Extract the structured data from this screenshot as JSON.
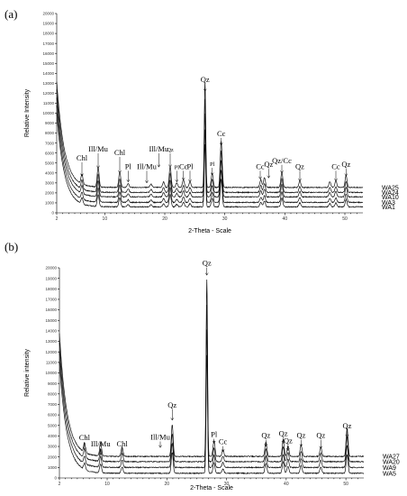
{
  "chart_data": [
    {
      "panel": "(a)",
      "type": "line",
      "xlabel": "2-Theta - Scale",
      "ylabel": "Relative Intensity",
      "xlim": [
        2,
        53
      ],
      "ylim": [
        0,
        20000
      ],
      "x_ticks": [
        2,
        10,
        20,
        30,
        40,
        50
      ],
      "y_ticks": [
        0,
        1000,
        2000,
        3000,
        4000,
        5000,
        6000,
        7000,
        8000,
        9000,
        10000,
        11000,
        12000,
        13000,
        14000,
        15000,
        16000,
        17000,
        18000,
        19000,
        20000
      ],
      "series": [
        {
          "name": "WA25",
          "baseline": 2550
        },
        {
          "name": "WA24",
          "baseline": 2050
        },
        {
          "name": "WA10",
          "baseline": 1600
        },
        {
          "name": "WA3",
          "baseline": 1050
        },
        {
          "name": "WA1",
          "baseline": 600
        }
      ],
      "start_intensity": [
        13200,
        12400,
        11600,
        10800,
        10000
      ],
      "peaks": [
        {
          "x": 6.2,
          "h": 900
        },
        {
          "x": 8.9,
          "h": 1800
        },
        {
          "x": 12.5,
          "h": 1400
        },
        {
          "x": 13.9,
          "h": 350
        },
        {
          "x": 17.7,
          "h": 300
        },
        {
          "x": 19.8,
          "h": 500
        },
        {
          "x": 20.9,
          "h": 1900
        },
        {
          "x": 22.0,
          "h": 400
        },
        {
          "x": 23.1,
          "h": 700
        },
        {
          "x": 24.2,
          "h": 500
        },
        {
          "x": 26.7,
          "h": 9500
        },
        {
          "x": 27.9,
          "h": 1300
        },
        {
          "x": 29.4,
          "h": 4200
        },
        {
          "x": 36.0,
          "h": 700
        },
        {
          "x": 36.6,
          "h": 900
        },
        {
          "x": 39.5,
          "h": 1400
        },
        {
          "x": 42.5,
          "h": 600
        },
        {
          "x": 47.5,
          "h": 500
        },
        {
          "x": 48.5,
          "h": 600
        },
        {
          "x": 50.2,
          "h": 1100
        }
      ],
      "annotations": [
        {
          "text": "Chl",
          "x": 6.2,
          "size": "l",
          "label_y": 5250,
          "arrow_to": 3700
        },
        {
          "text": "Ill/Mu",
          "x": 8.9,
          "size": "l",
          "label_y": 6150,
          "arrow_to": 4500
        },
        {
          "text": "Chl",
          "x": 12.5,
          "size": "l",
          "label_y": 5800,
          "arrow_to": 4000
        },
        {
          "text": "Pl",
          "x": 13.9,
          "size": "l",
          "label_y": 4400,
          "arrow_to": 3100
        },
        {
          "text": "Ill/Mu",
          "x": 17.0,
          "size": "l",
          "label_y": 4400,
          "arrow_to": 3000
        },
        {
          "text": "Ill/Mu",
          "x": 19.0,
          "size": "l",
          "label_y": 6150,
          "arrow_to": 4600
        },
        {
          "text": "Qz",
          "x": 20.9,
          "size": "s",
          "label_y": 6150,
          "arrow_to": 4600
        },
        {
          "text": "Pl",
          "x": 22.0,
          "size": "s",
          "label_y": 4400,
          "arrow_to": 3100
        },
        {
          "text": "Cc",
          "x": 23.1,
          "size": "l",
          "label_y": 4400,
          "arrow_to": 3300
        },
        {
          "text": "Pl",
          "x": 24.2,
          "size": "l",
          "label_y": 4400,
          "arrow_to": 3100
        },
        {
          "text": "Qz",
          "x": 26.7,
          "size": "l",
          "label_y": 13100,
          "arrow_to": 12200
        },
        {
          "text": "Pl",
          "x": 27.9,
          "size": "s",
          "label_y": 4700,
          "arrow_to": 3800
        },
        {
          "text": "Cc",
          "x": 29.4,
          "size": "l",
          "label_y": 7700,
          "arrow_to": 6800
        },
        {
          "text": "Cc",
          "x": 35.9,
          "size": "l",
          "label_y": 4400,
          "arrow_to": 3400
        },
        {
          "text": "Qz",
          "x": 37.3,
          "size": "l",
          "label_y": 4600,
          "arrow_to": 3500
        },
        {
          "text": "Qz/Cc",
          "x": 39.5,
          "size": "l",
          "label_y": 5000,
          "arrow_to": 4000
        },
        {
          "text": "Qz",
          "x": 42.5,
          "size": "l",
          "label_y": 4400,
          "arrow_to": 3200
        },
        {
          "text": "Cc",
          "x": 48.5,
          "size": "l",
          "label_y": 4400,
          "arrow_to": 3200
        },
        {
          "text": "Qz",
          "x": 50.2,
          "size": "l",
          "label_y": 4600,
          "arrow_to": 3700
        }
      ]
    },
    {
      "panel": "(b)",
      "type": "line",
      "xlabel": "2-Theta - Scale",
      "ylabel": "Relative intensity",
      "xlim": [
        2,
        53
      ],
      "ylim": [
        0,
        20000
      ],
      "x_ticks": [
        2,
        10,
        20,
        30,
        40,
        50
      ],
      "y_ticks": [
        0,
        1000,
        2000,
        3000,
        4000,
        5000,
        6000,
        7000,
        8000,
        9000,
        10000,
        11000,
        12000,
        13000,
        14000,
        15000,
        16000,
        17000,
        18000,
        19000,
        20000
      ],
      "series": [
        {
          "name": "WA27",
          "baseline": 2050
        },
        {
          "name": "WA20",
          "baseline": 1550
        },
        {
          "name": "WA9",
          "baseline": 1000
        },
        {
          "name": "WA5",
          "baseline": 450
        }
      ],
      "start_intensity": [
        13800,
        12900,
        12000,
        11000
      ],
      "peaks": [
        {
          "x": 6.2,
          "h": 900
        },
        {
          "x": 8.9,
          "h": 1300
        },
        {
          "x": 12.5,
          "h": 900
        },
        {
          "x": 20.9,
          "h": 3000
        },
        {
          "x": 26.7,
          "h": 17000
        },
        {
          "x": 27.9,
          "h": 1500
        },
        {
          "x": 29.4,
          "h": 600
        },
        {
          "x": 36.6,
          "h": 1400
        },
        {
          "x": 39.5,
          "h": 1600
        },
        {
          "x": 40.3,
          "h": 1000
        },
        {
          "x": 42.5,
          "h": 1100
        },
        {
          "x": 45.8,
          "h": 900
        },
        {
          "x": 50.2,
          "h": 2700
        }
      ],
      "annotations": [
        {
          "text": "Chl",
          "x": 6.2,
          "size": "l",
          "label_y": 3600,
          "arrow_to": 2700
        },
        {
          "text": "Ill/Mu",
          "x": 8.9,
          "size": "l",
          "label_y": 3000,
          "arrow_to": 2200
        },
        {
          "text": "Chl",
          "x": 12.5,
          "size": "l",
          "label_y": 3000,
          "arrow_to": 2200
        },
        {
          "text": "Ill/Mu",
          "x": 18.9,
          "size": "l",
          "label_y": 3650,
          "arrow_to": 2900
        },
        {
          "text": "Qz",
          "x": 20.9,
          "size": "l",
          "label_y": 6700,
          "arrow_to": 5500
        },
        {
          "text": "Qz",
          "x": 26.7,
          "size": "l",
          "label_y": 20200,
          "arrow_to": 19300
        },
        {
          "text": "Pl",
          "x": 27.9,
          "size": "l",
          "label_y": 3900,
          "arrow_to": 3300
        },
        {
          "text": "Cc",
          "x": 29.4,
          "size": "l",
          "label_y": 3200,
          "arrow_to": 2500
        },
        {
          "text": "Qz",
          "x": 36.6,
          "size": "l",
          "label_y": 3800,
          "arrow_to": 3000
        },
        {
          "text": "Qz",
          "x": 39.5,
          "size": "l",
          "label_y": 4000,
          "arrow_to": 3300
        },
        {
          "text": "Qz",
          "x": 40.3,
          "size": "l",
          "label_y": 3300,
          "arrow_to": 2600
        },
        {
          "text": "Qz",
          "x": 42.5,
          "size": "l",
          "label_y": 3800,
          "arrow_to": 3000
        },
        {
          "text": "Qz",
          "x": 45.8,
          "size": "l",
          "label_y": 3800,
          "arrow_to": 2800
        },
        {
          "text": "Qz",
          "x": 50.2,
          "size": "l",
          "label_y": 4700,
          "arrow_to": 3900
        }
      ]
    }
  ]
}
